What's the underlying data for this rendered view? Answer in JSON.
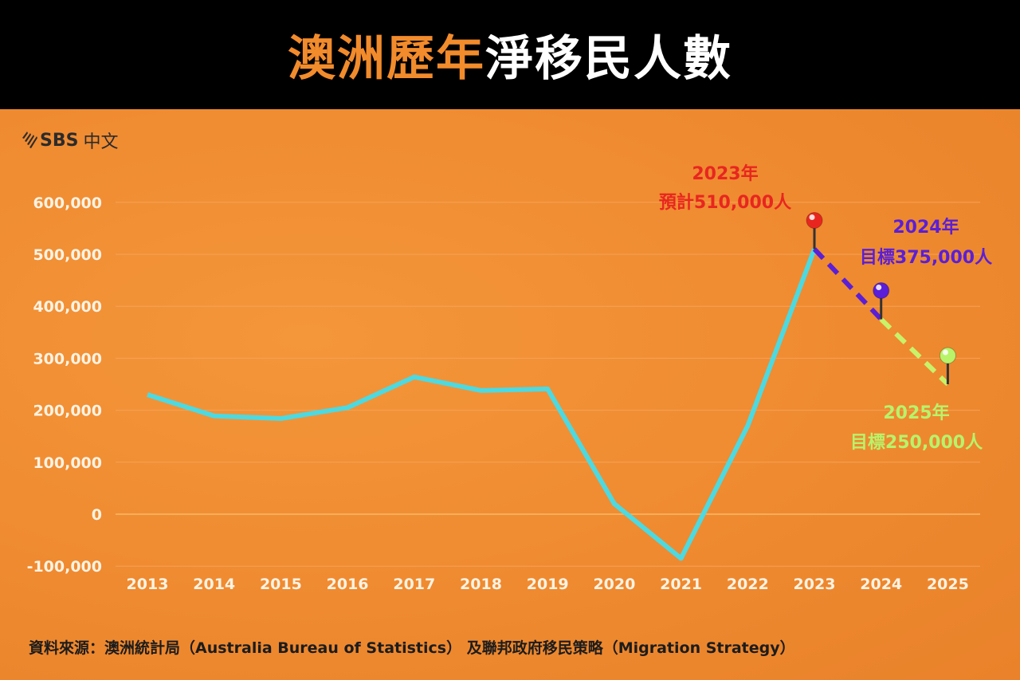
{
  "header": {
    "title_highlight": "澳洲歷年",
    "title_rest": "淨移民人數",
    "highlight_color": "#f28b2c"
  },
  "logo": {
    "brand": "SBS",
    "language": "中文"
  },
  "source": "資料來源：澳洲統計局（Australia Bureau of Statistics） 及聯邦政府移民策略（Migration Strategy）",
  "annotations": [
    {
      "year_label": "2023年",
      "value_label": "預計510,000人",
      "color": "#e8261f"
    },
    {
      "year_label": "2024年",
      "value_label": "目標375,000人",
      "color": "#5a1fd6"
    },
    {
      "year_label": "2025年",
      "value_label": "目標250,000人",
      "color": "#b8f36a"
    }
  ],
  "chart_data": {
    "type": "line",
    "title": "澳洲歷年淨移民人數",
    "xlabel": "",
    "ylabel": "",
    "categories": [
      "2013",
      "2014",
      "2015",
      "2016",
      "2017",
      "2018",
      "2019",
      "2020",
      "2021",
      "2022",
      "2023",
      "2024",
      "2025"
    ],
    "series": [
      {
        "name": "淨移民人數 (actual)",
        "color": "#4dd9e0",
        "style": "solid",
        "values": [
          230000,
          189000,
          184000,
          205000,
          264000,
          238000,
          241000,
          20000,
          -85000,
          170000,
          510000,
          null,
          null
        ]
      },
      {
        "name": "2024年目標",
        "color": "#5a1fd6",
        "style": "dashed",
        "values": [
          null,
          null,
          null,
          null,
          null,
          null,
          null,
          null,
          null,
          null,
          510000,
          375000,
          null
        ]
      },
      {
        "name": "2025年目標",
        "color": "#c8f26a",
        "style": "dashed",
        "values": [
          null,
          null,
          null,
          null,
          null,
          null,
          null,
          null,
          null,
          null,
          null,
          375000,
          250000
        ]
      }
    ],
    "yticks": [
      "600,000",
      "500,000",
      "400,000",
      "300,000",
      "200,000",
      "100,000",
      "0",
      "-100,000"
    ],
    "ylim": [
      -100000,
      600000
    ],
    "grid": true,
    "legend": "none",
    "annotations": [
      "2023年 預計510,000人",
      "2024年 目標375,000人",
      "2025年 目標250,000人"
    ]
  }
}
